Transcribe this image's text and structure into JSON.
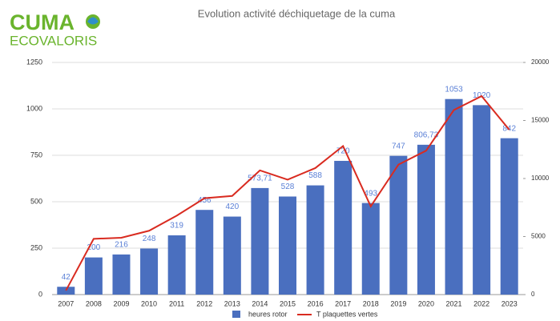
{
  "logo": {
    "line1": "CUMA",
    "line2": "ECOVALORIS"
  },
  "chart_data": {
    "type": "bar-line",
    "title": "Evolution activité déchiquetage de la cuma",
    "categories": [
      "2007",
      "2008",
      "2009",
      "2010",
      "2011",
      "2012",
      "2013",
      "2014",
      "2015",
      "2016",
      "2017",
      "2018",
      "2019",
      "2020",
      "2021",
      "2022",
      "2023"
    ],
    "series": [
      {
        "name": "heures rotor",
        "color": "#4a6fbf",
        "type": "bar",
        "values": [
          42,
          200,
          216,
          248,
          319,
          456,
          420,
          573.71,
          528,
          588,
          720,
          493,
          747,
          806.73,
          1053,
          1020,
          842
        ],
        "value_labels": [
          "42",
          "200",
          "216",
          "248",
          "319",
          "456",
          "420",
          "573,71",
          "528",
          "588",
          "720",
          "493",
          "747",
          "806,73",
          "1053",
          "1020",
          "842"
        ]
      },
      {
        "name": "T plaquettes vertes",
        "color": "#d92b20",
        "type": "line",
        "axis": "y2",
        "values": [
          350,
          4800,
          4900,
          5500,
          6800,
          8300,
          8500,
          10700,
          9900,
          10900,
          12800,
          7600,
          11200,
          12400,
          15900,
          17100,
          14200
        ]
      }
    ],
    "ylim": [
      0,
      1250
    ],
    "yticks": [
      0,
      250,
      500,
      750,
      1000,
      1250
    ],
    "y2lim": [
      0,
      20000
    ],
    "y2ticks": [
      0,
      5000,
      10000,
      15000,
      20000
    ],
    "grid": true
  }
}
